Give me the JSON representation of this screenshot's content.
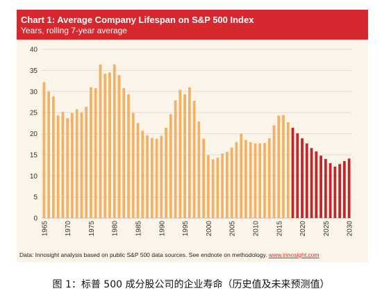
{
  "colors": {
    "header": "#d7282f",
    "historical": "#f2b165",
    "projected": "#c3252b",
    "background": "#fbf4e8"
  },
  "source_prefix": "Data: Innosight analysis based on public S&P 500 data sources. See endnote on methodology.",
  "source_link": "www.innosight.com",
  "caption": "图 1：标普 500 成分股公司的企业寿命（历史值及未来预测值）",
  "chart_data": {
    "type": "bar",
    "title": "Chart 1: Average Company Lifespan on S&P 500 Index",
    "subtitle": "Years, rolling 7-year average",
    "xlabel": "",
    "ylabel": "",
    "ylim": [
      0,
      40
    ],
    "yticks": [
      0,
      5,
      10,
      15,
      20,
      25,
      30,
      35,
      40
    ],
    "xticks": [
      1965,
      1970,
      1975,
      1980,
      1985,
      1990,
      1995,
      2000,
      2005,
      2010,
      2015,
      2020,
      2025,
      2030
    ],
    "grid": true,
    "legend": "none",
    "series": [
      {
        "years": [
          1965,
          1966,
          1967,
          1968,
          1969,
          1970,
          1971,
          1972,
          1973,
          1974,
          1975,
          1976,
          1977,
          1978,
          1979,
          1980,
          1981,
          1982,
          1983,
          1984,
          1985,
          1986,
          1987,
          1988,
          1989,
          1990,
          1991,
          1992,
          1993,
          1994,
          1995,
          1996,
          1997,
          1998,
          1999,
          2000,
          2001,
          2002,
          2003,
          2004,
          2005,
          2006,
          2007,
          2008,
          2009,
          2010,
          2011,
          2012,
          2013,
          2014,
          2015,
          2016,
          2017
        ],
        "values": [
          32.2,
          30.0,
          28.8,
          24.3,
          25.2,
          23.7,
          24.9,
          25.8,
          25.0,
          26.4,
          31.0,
          30.8,
          36.4,
          34.2,
          34.5,
          36.4,
          33.9,
          30.8,
          29.3,
          24.9,
          22.5,
          20.7,
          19.6,
          19.0,
          18.8,
          19.5,
          21.4,
          24.6,
          27.9,
          30.4,
          29.3,
          31.0,
          27.8,
          22.9,
          18.8,
          14.9,
          13.9,
          14.3,
          15.3,
          15.7,
          16.7,
          18.0,
          20.0,
          18.5,
          18.0,
          17.7,
          17.7,
          17.8,
          18.9,
          22.0,
          24.3,
          24.4,
          22.7
        ]
      },
      {
        "years": [
          2018,
          2019,
          2020,
          2021,
          2022,
          2023,
          2024,
          2025,
          2026,
          2027,
          2028,
          2029,
          2030
        ],
        "values": [
          21.4,
          20.1,
          18.9,
          17.7,
          16.6,
          15.8,
          14.8,
          14.0,
          13.0,
          12.2,
          12.8,
          13.5,
          14.1
        ]
      }
    ]
  }
}
